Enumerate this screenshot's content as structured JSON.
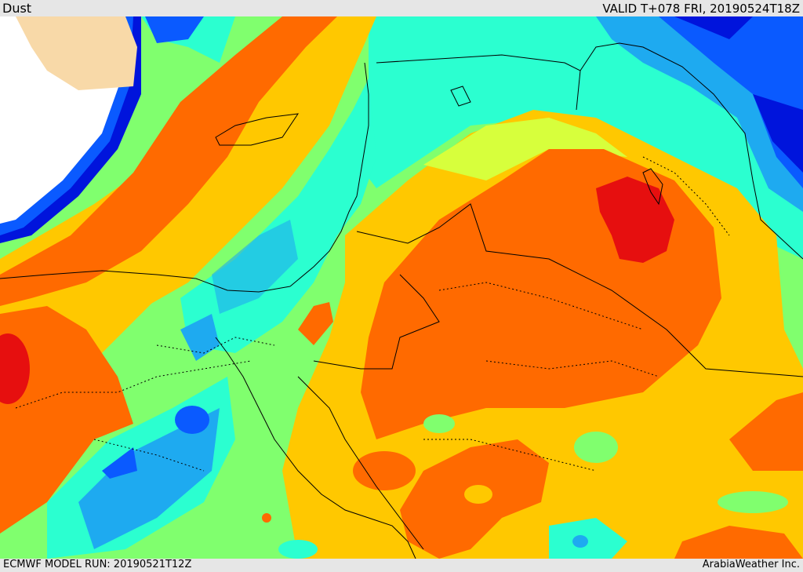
{
  "header": {
    "product": "Dust",
    "valid": "VALID T+078 FRI, 20190524T18Z"
  },
  "footer": {
    "model_run": "ECMWF MODEL RUN: 20190521T12Z",
    "brand": "ArabiaWeather Inc."
  },
  "palette": {
    "deep_blue": "#0014dc",
    "blue": "#0a5aff",
    "sky_blue": "#1eaaf0",
    "cyan": "#28dcdc",
    "aqua": "#2bffd0",
    "green": "#80ff6e",
    "yellow_green": "#d7ff3c",
    "yellow": "#ffc800",
    "orange": "#ff6a00",
    "red": "#e60f0f",
    "land_beige": "#f8d9a8",
    "no_data": "#ffffff"
  }
}
